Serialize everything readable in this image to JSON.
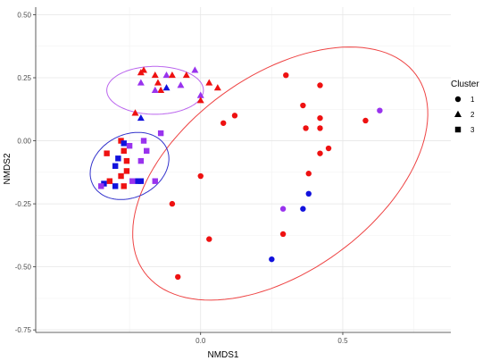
{
  "chart_data": {
    "type": "scatter",
    "xlabel": "NMDS1",
    "ylabel": "NMDS2",
    "xlim": [
      -0.58,
      0.88
    ],
    "ylim": [
      -0.76,
      0.53
    ],
    "x_ticks": [
      {
        "value": 0.0,
        "label": "0.0"
      },
      {
        "value": 0.5,
        "label": "0.5"
      }
    ],
    "y_ticks": [
      {
        "value": 0.5,
        "label": "0.50"
      },
      {
        "value": 0.25,
        "label": "0.25"
      },
      {
        "value": 0.0,
        "label": "0.00"
      },
      {
        "value": -0.25,
        "label": "-0.25"
      },
      {
        "value": -0.5,
        "label": "-0.50"
      },
      {
        "value": -0.75,
        "label": "-0.75"
      }
    ],
    "grid": true,
    "legend": {
      "title": "Cluster",
      "placement": "right",
      "entries": [
        {
          "label": "1",
          "shape": "circle"
        },
        {
          "label": "2",
          "shape": "triangle"
        },
        {
          "label": "3",
          "shape": "square"
        }
      ]
    },
    "colors": {
      "red": "#ee1111",
      "purple": "#9933ee",
      "blue": "#1111dd"
    },
    "ellipses": [
      {
        "cluster": "1",
        "color": "#ee4444",
        "cx": 0.28,
        "cy": -0.13,
        "rx": 0.62,
        "ry": 0.37,
        "angle_deg": 43
      },
      {
        "cluster": "2",
        "color": "#bb66ee",
        "cx": -0.16,
        "cy": 0.2,
        "rx": 0.17,
        "ry": 0.095,
        "angle_deg": 0
      },
      {
        "cluster": "3",
        "color": "#3333cc",
        "cx": -0.25,
        "cy": -0.1,
        "rx": 0.15,
        "ry": 0.12,
        "angle_deg": 40
      }
    ],
    "points": [
      {
        "x": 0.3,
        "y": 0.26,
        "shape": "circle",
        "color": "red"
      },
      {
        "x": 0.42,
        "y": 0.22,
        "shape": "circle",
        "color": "red"
      },
      {
        "x": 0.36,
        "y": 0.14,
        "shape": "circle",
        "color": "red"
      },
      {
        "x": 0.42,
        "y": 0.09,
        "shape": "circle",
        "color": "red"
      },
      {
        "x": 0.12,
        "y": 0.1,
        "shape": "circle",
        "color": "red"
      },
      {
        "x": 0.08,
        "y": 0.07,
        "shape": "circle",
        "color": "red"
      },
      {
        "x": 0.37,
        "y": 0.05,
        "shape": "circle",
        "color": "red"
      },
      {
        "x": 0.42,
        "y": 0.05,
        "shape": "circle",
        "color": "red"
      },
      {
        "x": 0.58,
        "y": 0.08,
        "shape": "circle",
        "color": "red"
      },
      {
        "x": 0.63,
        "y": 0.12,
        "shape": "circle",
        "color": "purple"
      },
      {
        "x": 0.45,
        "y": -0.03,
        "shape": "circle",
        "color": "red"
      },
      {
        "x": 0.42,
        "y": -0.05,
        "shape": "circle",
        "color": "red"
      },
      {
        "x": 0.38,
        "y": -0.13,
        "shape": "circle",
        "color": "red"
      },
      {
        "x": 0.0,
        "y": -0.14,
        "shape": "circle",
        "color": "red"
      },
      {
        "x": -0.1,
        "y": -0.25,
        "shape": "circle",
        "color": "red"
      },
      {
        "x": 0.38,
        "y": -0.21,
        "shape": "circle",
        "color": "blue"
      },
      {
        "x": 0.29,
        "y": -0.27,
        "shape": "circle",
        "color": "purple"
      },
      {
        "x": 0.36,
        "y": -0.27,
        "shape": "circle",
        "color": "blue"
      },
      {
        "x": 0.29,
        "y": -0.37,
        "shape": "circle",
        "color": "red"
      },
      {
        "x": 0.03,
        "y": -0.39,
        "shape": "circle",
        "color": "red"
      },
      {
        "x": 0.25,
        "y": -0.47,
        "shape": "circle",
        "color": "blue"
      },
      {
        "x": -0.08,
        "y": -0.54,
        "shape": "circle",
        "color": "red"
      },
      {
        "x": -0.2,
        "y": 0.28,
        "shape": "triangle",
        "color": "red"
      },
      {
        "x": -0.21,
        "y": 0.23,
        "shape": "triangle",
        "color": "purple"
      },
      {
        "x": -0.21,
        "y": 0.27,
        "shape": "triangle",
        "color": "red"
      },
      {
        "x": -0.16,
        "y": 0.26,
        "shape": "triangle",
        "color": "red"
      },
      {
        "x": -0.12,
        "y": 0.26,
        "shape": "triangle",
        "color": "purple"
      },
      {
        "x": -0.1,
        "y": 0.26,
        "shape": "triangle",
        "color": "red"
      },
      {
        "x": -0.05,
        "y": 0.26,
        "shape": "triangle",
        "color": "red"
      },
      {
        "x": -0.02,
        "y": 0.28,
        "shape": "triangle",
        "color": "purple"
      },
      {
        "x": -0.15,
        "y": 0.23,
        "shape": "triangle",
        "color": "red"
      },
      {
        "x": -0.07,
        "y": 0.22,
        "shape": "triangle",
        "color": "purple"
      },
      {
        "x": 0.03,
        "y": 0.23,
        "shape": "triangle",
        "color": "red"
      },
      {
        "x": 0.06,
        "y": 0.21,
        "shape": "triangle",
        "color": "red"
      },
      {
        "x": -0.14,
        "y": 0.2,
        "shape": "triangle",
        "color": "red"
      },
      {
        "x": -0.16,
        "y": 0.2,
        "shape": "triangle",
        "color": "purple"
      },
      {
        "x": -0.12,
        "y": 0.21,
        "shape": "triangle",
        "color": "blue"
      },
      {
        "x": 0.0,
        "y": 0.18,
        "shape": "triangle",
        "color": "purple"
      },
      {
        "x": 0.0,
        "y": 0.16,
        "shape": "triangle",
        "color": "red"
      },
      {
        "x": -0.23,
        "y": 0.11,
        "shape": "triangle",
        "color": "red"
      },
      {
        "x": -0.21,
        "y": 0.09,
        "shape": "triangle",
        "color": "blue"
      },
      {
        "x": -0.28,
        "y": 0.0,
        "shape": "square",
        "color": "red"
      },
      {
        "x": -0.27,
        "y": -0.01,
        "shape": "square",
        "color": "blue"
      },
      {
        "x": -0.25,
        "y": -0.02,
        "shape": "square",
        "color": "purple"
      },
      {
        "x": -0.2,
        "y": 0.0,
        "shape": "square",
        "color": "purple"
      },
      {
        "x": -0.14,
        "y": 0.03,
        "shape": "square",
        "color": "purple"
      },
      {
        "x": -0.33,
        "y": -0.05,
        "shape": "square",
        "color": "red"
      },
      {
        "x": -0.27,
        "y": -0.04,
        "shape": "square",
        "color": "red"
      },
      {
        "x": -0.29,
        "y": -0.07,
        "shape": "square",
        "color": "blue"
      },
      {
        "x": -0.26,
        "y": -0.08,
        "shape": "square",
        "color": "red"
      },
      {
        "x": -0.19,
        "y": -0.04,
        "shape": "square",
        "color": "purple"
      },
      {
        "x": -0.21,
        "y": -0.08,
        "shape": "square",
        "color": "purple"
      },
      {
        "x": -0.3,
        "y": -0.1,
        "shape": "square",
        "color": "blue"
      },
      {
        "x": -0.26,
        "y": -0.12,
        "shape": "square",
        "color": "red"
      },
      {
        "x": -0.28,
        "y": -0.14,
        "shape": "square",
        "color": "red"
      },
      {
        "x": -0.32,
        "y": -0.16,
        "shape": "square",
        "color": "red"
      },
      {
        "x": -0.34,
        "y": -0.17,
        "shape": "square",
        "color": "blue"
      },
      {
        "x": -0.35,
        "y": -0.18,
        "shape": "square",
        "color": "purple"
      },
      {
        "x": -0.3,
        "y": -0.18,
        "shape": "square",
        "color": "blue"
      },
      {
        "x": -0.27,
        "y": -0.18,
        "shape": "square",
        "color": "red"
      },
      {
        "x": -0.24,
        "y": -0.16,
        "shape": "square",
        "color": "purple"
      },
      {
        "x": -0.22,
        "y": -0.16,
        "shape": "square",
        "color": "blue"
      },
      {
        "x": -0.21,
        "y": -0.16,
        "shape": "square",
        "color": "blue"
      },
      {
        "x": -0.16,
        "y": -0.16,
        "shape": "square",
        "color": "purple"
      }
    ]
  }
}
